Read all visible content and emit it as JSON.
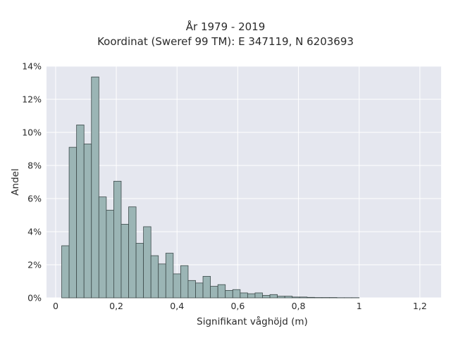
{
  "chart_data": {
    "type": "bar",
    "title_line1": "År 1979 - 2019",
    "title_line2": "Koordinat (Sweref 99 TM): E 347119, N 6203693",
    "xlabel": "Signifikant våghöjd (m)",
    "ylabel": "Andel",
    "x_ticks": [
      {
        "value": 0,
        "label": "0"
      },
      {
        "value": 0.2,
        "label": "0,2"
      },
      {
        "value": 0.4,
        "label": "0,4"
      },
      {
        "value": 0.6,
        "label": "0,6"
      },
      {
        "value": 0.8,
        "label": "0,8"
      },
      {
        "value": 1.0,
        "label": "1"
      },
      {
        "value": 1.2,
        "label": "1,2"
      }
    ],
    "y_ticks": [
      {
        "value": 0,
        "label": "0%"
      },
      {
        "value": 2,
        "label": "2%"
      },
      {
        "value": 4,
        "label": "4%"
      },
      {
        "value": 6,
        "label": "6%"
      },
      {
        "value": 8,
        "label": "8%"
      },
      {
        "value": 10,
        "label": "10%"
      },
      {
        "value": 12,
        "label": "12%"
      },
      {
        "value": 14,
        "label": "14%"
      }
    ],
    "xlim": [
      -0.03,
      1.27
    ],
    "ylim": [
      0,
      14
    ],
    "bin_width": 0.0245,
    "bin_start": 0.02,
    "values": [
      3.15,
      9.1,
      10.45,
      9.3,
      13.35,
      6.1,
      5.3,
      7.05,
      4.45,
      5.5,
      3.3,
      4.3,
      2.55,
      2.05,
      2.7,
      1.45,
      1.95,
      1.05,
      0.9,
      1.3,
      0.7,
      0.8,
      0.45,
      0.5,
      0.3,
      0.25,
      0.3,
      0.15,
      0.2,
      0.1,
      0.1,
      0.05,
      0.05,
      0.03,
      0.02,
      0.02,
      0.02,
      0.01,
      0.01,
      0.01
    ],
    "bar_color": "#9bb5b5",
    "edge_color": "#3d4a4a",
    "plot_background": "#e5e7ef",
    "grid": true
  }
}
